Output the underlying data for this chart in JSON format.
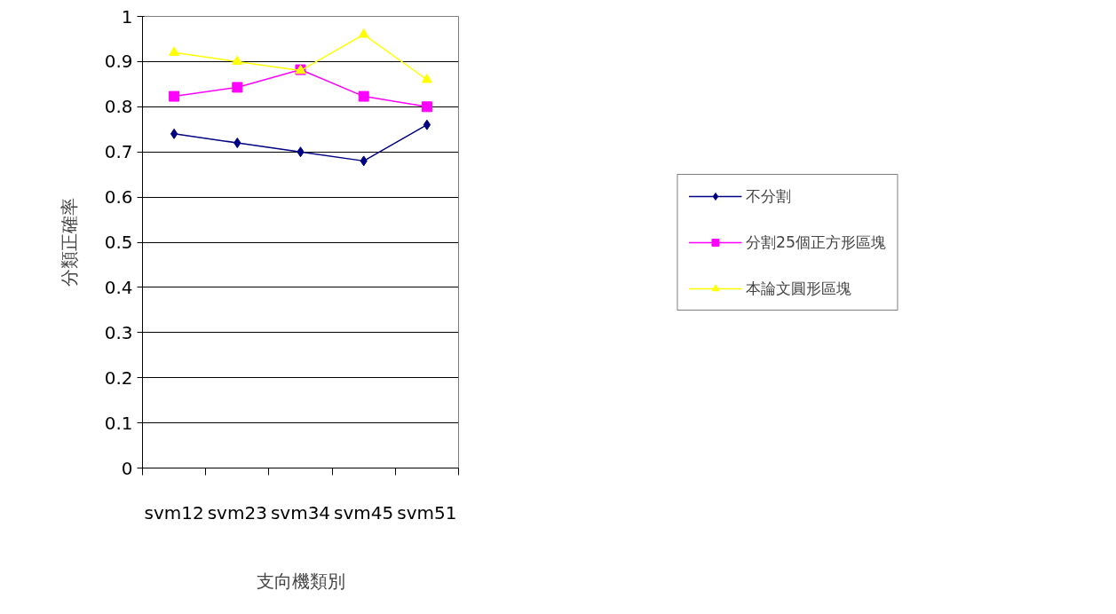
{
  "chart_data": {
    "type": "line",
    "xlabel": "支向機類別",
    "ylabel": "分類正確率",
    "categories": [
      "svm12",
      "svm23",
      "svm34",
      "svm45",
      "svm51"
    ],
    "series": [
      {
        "name": "不分割",
        "color": "#000080",
        "marker": "diamond",
        "values": [
          0.74,
          0.72,
          0.7,
          0.68,
          0.76
        ]
      },
      {
        "name": "分割25個正方形區塊",
        "color": "#ff00ff",
        "marker": "square",
        "values": [
          0.823,
          0.843,
          0.882,
          0.823,
          0.8
        ]
      },
      {
        "name": "本論文圓形區塊",
        "color": "#ffff00",
        "marker": "triangle",
        "values": [
          0.92,
          0.9,
          0.88,
          0.96,
          0.86
        ]
      }
    ],
    "ylim": [
      0,
      1
    ],
    "yticks": [
      0,
      0.1,
      0.2,
      0.3,
      0.4,
      0.5,
      0.6,
      0.7,
      0.8,
      0.9,
      1
    ],
    "grid": "y",
    "legend": "right",
    "line_style": "solid"
  }
}
